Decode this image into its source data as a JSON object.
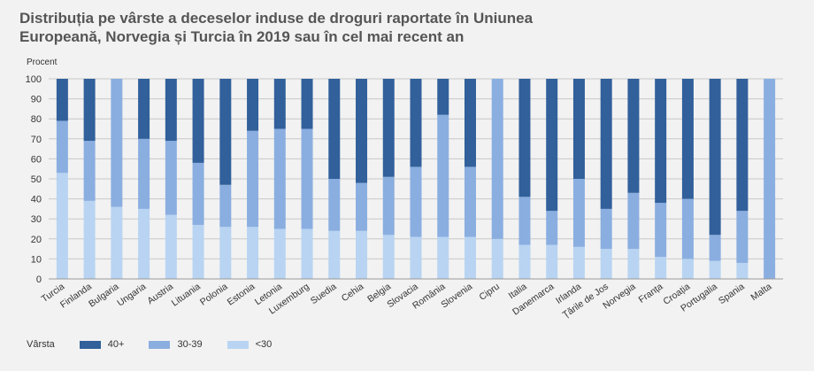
{
  "chart_data": {
    "type": "bar",
    "stacked": true,
    "title": "Distribuția pe vârste a deceselor induse de droguri raportate în Uniunea Europeană, Norvegia și Turcia în 2019 sau în cel mai recent an",
    "ylabel": "Procent",
    "xlabel": "",
    "ylim": [
      0,
      100
    ],
    "yticks": [
      0,
      10,
      20,
      30,
      40,
      50,
      60,
      70,
      80,
      90,
      100
    ],
    "grid": true,
    "legend_title": "Vârsta",
    "legend_position": "bottom-left",
    "categories": [
      "Turcia",
      "Finlanda",
      "Bulgaria",
      "Ungaria",
      "Austria",
      "Lituania",
      "Polonia",
      "Estonia",
      "Letonia",
      "Luxemburg",
      "Suedia",
      "Cehia",
      "Belgia",
      "Slovacia",
      "România",
      "Slovenia",
      "Cipru",
      "Italia",
      "Danemarca",
      "Irlanda",
      "Țările de Jos",
      "Norvegia",
      "Franța",
      "Croația",
      "Portugalia",
      "Spania",
      "Malta"
    ],
    "series": [
      {
        "name": "<30",
        "color": "#b8d4f2",
        "values": [
          53,
          39,
          36,
          35,
          32,
          27,
          26,
          26,
          25,
          25,
          24,
          24,
          22,
          21,
          21,
          21,
          20,
          17,
          17,
          16,
          15,
          15,
          11,
          10,
          9,
          8,
          0
        ]
      },
      {
        "name": "30-39",
        "color": "#8aaee0",
        "values": [
          26,
          30,
          64,
          35,
          37,
          31,
          21,
          48,
          50,
          50,
          26,
          24,
          29,
          35,
          61,
          35,
          80,
          24,
          17,
          34,
          20,
          28,
          27,
          30,
          13,
          26,
          100
        ]
      },
      {
        "name": "40+",
        "color": "#31609b",
        "values": [
          21,
          31,
          0,
          30,
          31,
          42,
          53,
          26,
          25,
          25,
          50,
          52,
          49,
          44,
          18,
          44,
          0,
          59,
          66,
          50,
          65,
          57,
          62,
          60,
          78,
          66,
          0
        ]
      }
    ]
  }
}
